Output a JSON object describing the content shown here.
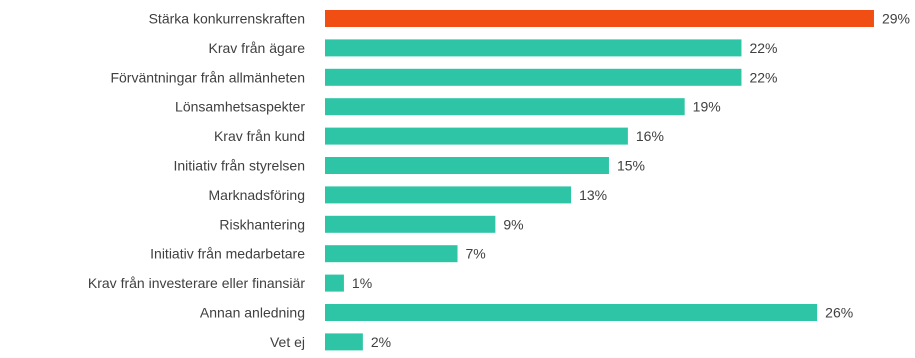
{
  "chart_data": {
    "type": "bar",
    "orientation": "horizontal",
    "categories": [
      "Stärka konkurrenskraften",
      "Krav från ägare",
      "Förväntningar från allmänheten",
      "Lönsamhetsaspekter",
      "Krav från kund",
      "Initiativ från styrelsen",
      "Marknadsföring",
      "Riskhantering",
      "Initiativ från medarbetare",
      "Krav från investerare eller finansiär",
      "Annan anledning",
      "Vet ej"
    ],
    "values": [
      29,
      22,
      22,
      19,
      16,
      15,
      13,
      9,
      7,
      1,
      26,
      2
    ],
    "value_labels": [
      "29%",
      "22%",
      "22%",
      "19%",
      "16%",
      "15%",
      "13%",
      "9%",
      "7%",
      "1%",
      "26%",
      "2%"
    ],
    "unit": "%",
    "highlight_index": 0,
    "colors": {
      "highlight": "#f04e12",
      "default": "#2ec4a6"
    },
    "grid": false,
    "legend": "none"
  }
}
